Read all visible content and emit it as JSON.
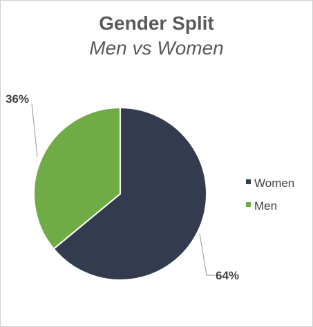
{
  "chart_data": {
    "type": "pie",
    "title": "Gender Split",
    "subtitle": "Men vs Women",
    "slices": [
      {
        "label": "Women",
        "value": 64,
        "display": "64%",
        "color": "#323c4e"
      },
      {
        "label": "Men",
        "value": 36,
        "display": "36%",
        "color": "#6fac45"
      }
    ],
    "legend": {
      "placement": "right"
    }
  }
}
